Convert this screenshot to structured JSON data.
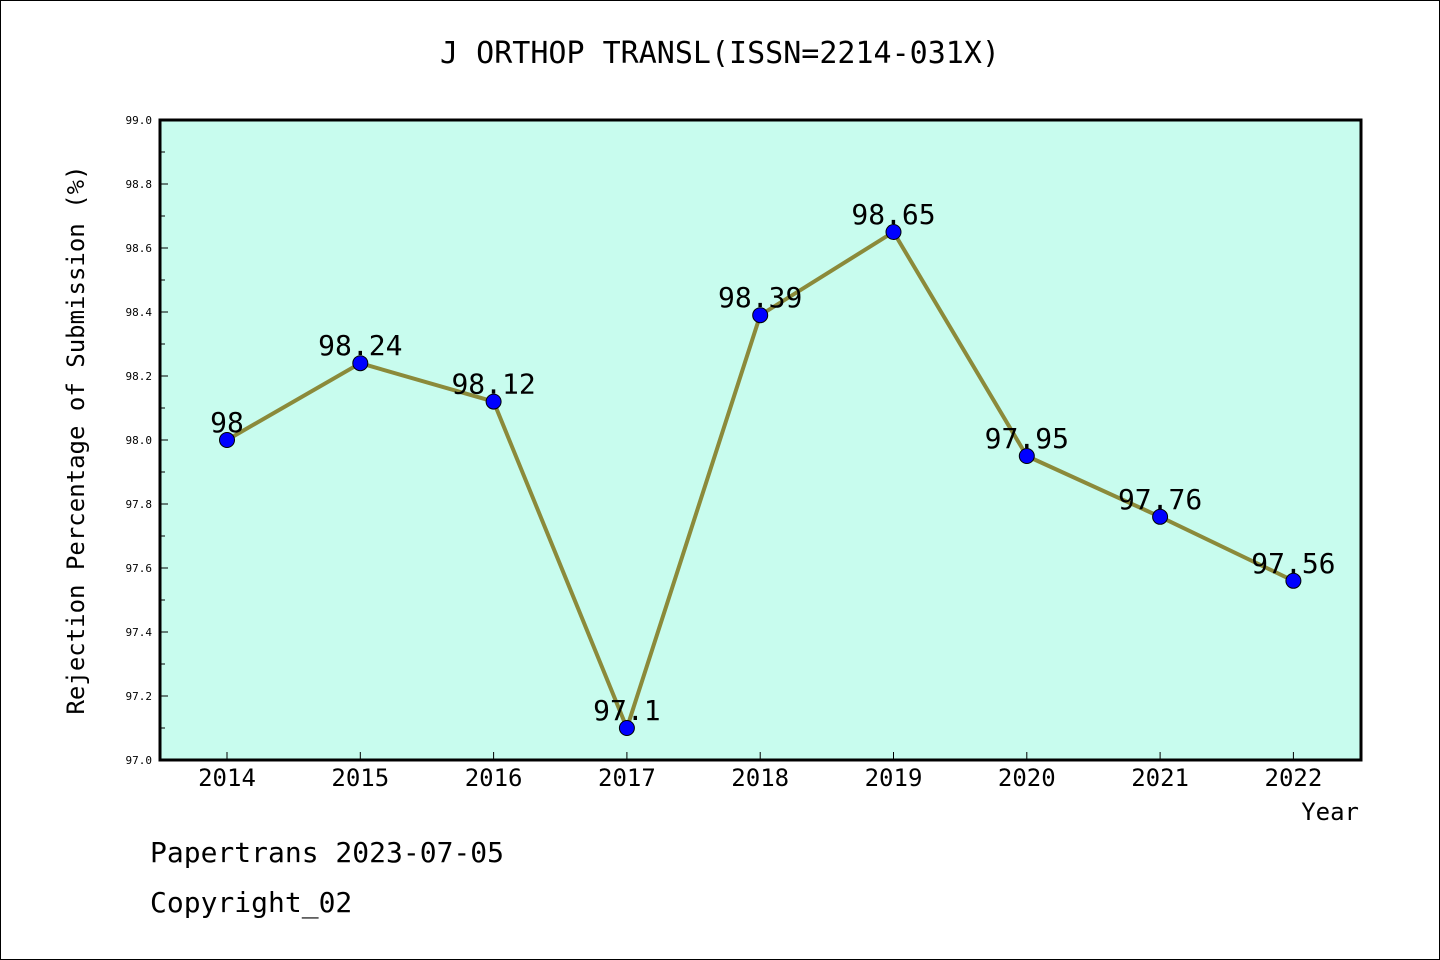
{
  "title": "J ORTHOP TRANSL(ISSN=2214-031X)",
  "footer": {
    "line1": "Papertrans 2023-07-05",
    "line2": "Copyright_02"
  },
  "colors": {
    "plot_background": "#c8fcee",
    "line": "#8b8a3a",
    "marker": "#0000ff"
  },
  "chart_data": {
    "type": "line",
    "x": [
      "2014",
      "2015",
      "2016",
      "2017",
      "2018",
      "2019",
      "2020",
      "2021",
      "2022"
    ],
    "series": [
      {
        "values": [
          98,
          98.24,
          98.12,
          97.1,
          98.39,
          98.65,
          97.95,
          97.76,
          97.56
        ],
        "labels": [
          "98",
          "98.24",
          "98.12",
          "97.1",
          "98.39",
          "98.65",
          "97.95",
          "97.76",
          "97.56"
        ]
      }
    ],
    "xlabel": "Year",
    "ylabel": "Rejection Percentage of Submission (%)",
    "ylim": [
      97.0,
      99.0
    ],
    "yticks": [
      "97.0",
      "97.2",
      "97.4",
      "97.6",
      "97.8",
      "98.0",
      "98.2",
      "98.4",
      "98.6",
      "98.8",
      "99.0"
    ],
    "grid": false
  }
}
